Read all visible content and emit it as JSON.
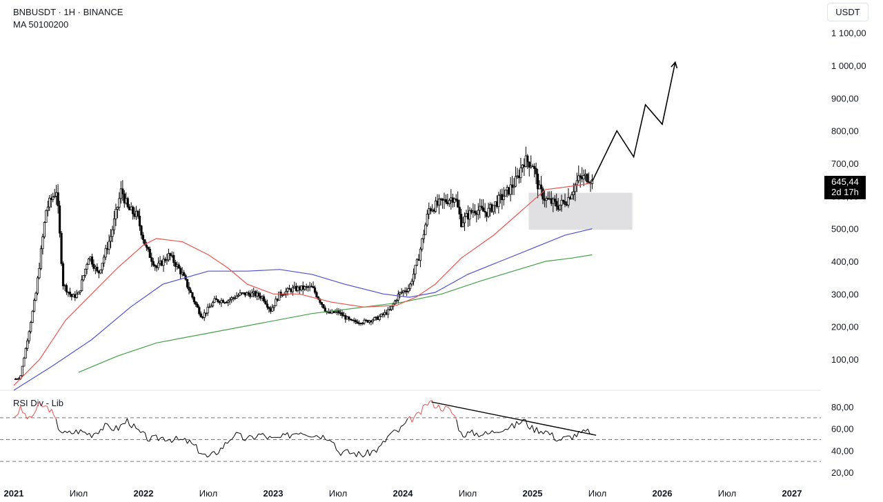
{
  "header": {
    "symbol_line": "BNBUSDT · 1H · BINANCE",
    "indicator_line": "MA 50100200"
  },
  "currency_label": "USDT",
  "price_tag": {
    "price": "645,44",
    "countdown": "2d 17h"
  },
  "rsi_panel": {
    "title": "RSI Div - Lib"
  },
  "colors": {
    "candle": "#000000",
    "ma50": "#e8534f",
    "ma100": "#4f4fd9",
    "ma200": "#43a047",
    "rsi_line": "#000000",
    "rsi_overbought": "#e8534f",
    "zone_fill": "#e0e0e2"
  },
  "chart_data": [
    {
      "type": "candlestick",
      "title": "BNBUSDT · 1H · BINANCE",
      "ylabel": "USDT",
      "ylim": [
        0,
        1150
      ],
      "y_ticks": [
        "100,00",
        "200,00",
        "300,00",
        "400,00",
        "500,00",
        "600,00",
        "700,00",
        "800,00",
        "900,00",
        "1 000,00",
        "1 100,00"
      ],
      "y_tick_values": [
        100,
        200,
        300,
        400,
        500,
        600,
        700,
        800,
        900,
        1000,
        1100
      ],
      "x_ticks": [
        {
          "label": "2021",
          "t": 2021.0,
          "bold": true
        },
        {
          "label": "Июл",
          "t": 2021.5,
          "bold": false
        },
        {
          "label": "2022",
          "t": 2022.0,
          "bold": true
        },
        {
          "label": "Июл",
          "t": 2022.5,
          "bold": false
        },
        {
          "label": "2023",
          "t": 2023.0,
          "bold": true
        },
        {
          "label": "Июл",
          "t": 2023.5,
          "bold": false
        },
        {
          "label": "2024",
          "t": 2024.0,
          "bold": true
        },
        {
          "label": "Июл",
          "t": 2024.5,
          "bold": false
        },
        {
          "label": "2025",
          "t": 2025.0,
          "bold": true
        },
        {
          "label": "Июл",
          "t": 2025.5,
          "bold": false
        },
        {
          "label": "2026",
          "t": 2026.0,
          "bold": true
        },
        {
          "label": "Июл",
          "t": 2026.5,
          "bold": false
        },
        {
          "label": "2027",
          "t": 2027.0,
          "bold": true
        }
      ],
      "price_path": [
        [
          2021.0,
          38
        ],
        [
          2021.05,
          45
        ],
        [
          2021.1,
          150
        ],
        [
          2021.17,
          300
        ],
        [
          2021.25,
          560
        ],
        [
          2021.33,
          620
        ],
        [
          2021.38,
          330
        ],
        [
          2021.45,
          290
        ],
        [
          2021.5,
          300
        ],
        [
          2021.58,
          420
        ],
        [
          2021.65,
          360
        ],
        [
          2021.75,
          480
        ],
        [
          2021.83,
          620
        ],
        [
          2021.88,
          560
        ],
        [
          2021.95,
          540
        ],
        [
          2022.02,
          440
        ],
        [
          2022.1,
          380
        ],
        [
          2022.2,
          420
        ],
        [
          2022.3,
          360
        ],
        [
          2022.4,
          270
        ],
        [
          2022.45,
          230
        ],
        [
          2022.55,
          280
        ],
        [
          2022.65,
          280
        ],
        [
          2022.75,
          300
        ],
        [
          2022.85,
          300
        ],
        [
          2022.92,
          290
        ],
        [
          2022.98,
          250
        ],
        [
          2023.05,
          300
        ],
        [
          2023.15,
          315
        ],
        [
          2023.3,
          320
        ],
        [
          2023.42,
          240
        ],
        [
          2023.5,
          245
        ],
        [
          2023.6,
          215
        ],
        [
          2023.7,
          215
        ],
        [
          2023.8,
          225
        ],
        [
          2023.9,
          250
        ],
        [
          2023.97,
          300
        ],
        [
          2024.05,
          320
        ],
        [
          2024.12,
          410
        ],
        [
          2024.2,
          560
        ],
        [
          2024.3,
          580
        ],
        [
          2024.4,
          600
        ],
        [
          2024.45,
          520
        ],
        [
          2024.55,
          560
        ],
        [
          2024.65,
          550
        ],
        [
          2024.72,
          580
        ],
        [
          2024.8,
          610
        ],
        [
          2024.88,
          650
        ],
        [
          2024.93,
          710
        ],
        [
          2025.0,
          700
        ],
        [
          2025.05,
          620
        ],
        [
          2025.1,
          590
        ],
        [
          2025.15,
          580
        ],
        [
          2025.2,
          570
        ],
        [
          2025.27,
          590
        ],
        [
          2025.35,
          650
        ],
        [
          2025.43,
          660
        ],
        [
          2025.46,
          645
        ]
      ],
      "ma50": [
        [
          2021.0,
          20
        ],
        [
          2021.2,
          100
        ],
        [
          2021.4,
          220
        ],
        [
          2021.6,
          300
        ],
        [
          2021.8,
          380
        ],
        [
          2022.0,
          450
        ],
        [
          2022.1,
          470
        ],
        [
          2022.3,
          460
        ],
        [
          2022.5,
          420
        ],
        [
          2022.65,
          380
        ],
        [
          2022.8,
          330
        ],
        [
          2023.0,
          300
        ],
        [
          2023.2,
          300
        ],
        [
          2023.45,
          275
        ],
        [
          2023.7,
          260
        ],
        [
          2023.95,
          265
        ],
        [
          2024.1,
          290
        ],
        [
          2024.25,
          330
        ],
        [
          2024.45,
          410
        ],
        [
          2024.7,
          480
        ],
        [
          2024.9,
          550
        ],
        [
          2025.1,
          620
        ],
        [
          2025.3,
          630
        ],
        [
          2025.46,
          640
        ]
      ],
      "ma100": [
        [
          2021.0,
          5
        ],
        [
          2021.3,
          80
        ],
        [
          2021.6,
          160
        ],
        [
          2021.9,
          260
        ],
        [
          2022.15,
          330
        ],
        [
          2022.5,
          370
        ],
        [
          2022.8,
          370
        ],
        [
          2023.05,
          375
        ],
        [
          2023.3,
          360
        ],
        [
          2023.55,
          330
        ],
        [
          2023.85,
          300
        ],
        [
          2024.05,
          290
        ],
        [
          2024.25,
          305
        ],
        [
          2024.5,
          360
        ],
        [
          2024.75,
          400
        ],
        [
          2025.0,
          440
        ],
        [
          2025.25,
          480
        ],
        [
          2025.46,
          500
        ]
      ],
      "ma200": [
        [
          2021.5,
          60
        ],
        [
          2021.8,
          110
        ],
        [
          2022.1,
          150
        ],
        [
          2022.5,
          180
        ],
        [
          2022.9,
          210
        ],
        [
          2023.3,
          240
        ],
        [
          2023.7,
          260
        ],
        [
          2024.0,
          275
        ],
        [
          2024.3,
          300
        ],
        [
          2024.6,
          340
        ],
        [
          2024.85,
          370
        ],
        [
          2025.1,
          400
        ],
        [
          2025.3,
          410
        ],
        [
          2025.46,
          420
        ]
      ],
      "projection": [
        [
          2025.46,
          645
        ],
        [
          2025.65,
          800
        ],
        [
          2025.78,
          720
        ],
        [
          2025.87,
          880
        ],
        [
          2026.0,
          820
        ],
        [
          2026.1,
          1010
        ]
      ],
      "support_zone": {
        "t0": 2024.97,
        "t1": 2025.77,
        "low": 497,
        "high": 610
      }
    },
    {
      "type": "line",
      "title": "RSI Div - Lib",
      "ylim": [
        10,
        92
      ],
      "y_ticks": [
        "20,00",
        "40,00",
        "60,00",
        "80,00"
      ],
      "y_tick_values": [
        20,
        40,
        60,
        80
      ],
      "levels": [
        30,
        50,
        70
      ],
      "rsi": [
        [
          2021.0,
          70
        ],
        [
          2021.05,
          78
        ],
        [
          2021.12,
          68
        ],
        [
          2021.2,
          82
        ],
        [
          2021.28,
          78
        ],
        [
          2021.35,
          60
        ],
        [
          2021.4,
          55
        ],
        [
          2021.5,
          58
        ],
        [
          2021.6,
          55
        ],
        [
          2021.7,
          62
        ],
        [
          2021.8,
          60
        ],
        [
          2021.88,
          68
        ],
        [
          2021.95,
          58
        ],
        [
          2022.05,
          50
        ],
        [
          2022.15,
          52
        ],
        [
          2022.25,
          50
        ],
        [
          2022.35,
          48
        ],
        [
          2022.45,
          38
        ],
        [
          2022.5,
          33
        ],
        [
          2022.6,
          42
        ],
        [
          2022.7,
          55
        ],
        [
          2022.8,
          50
        ],
        [
          2022.9,
          55
        ],
        [
          2023.0,
          50
        ],
        [
          2023.1,
          53
        ],
        [
          2023.2,
          58
        ],
        [
          2023.3,
          55
        ],
        [
          2023.45,
          52
        ],
        [
          2023.5,
          39
        ],
        [
          2023.6,
          38
        ],
        [
          2023.7,
          36
        ],
        [
          2023.82,
          42
        ],
        [
          2023.9,
          55
        ],
        [
          2023.97,
          58
        ],
        [
          2024.05,
          68
        ],
        [
          2024.12,
          72
        ],
        [
          2024.2,
          85
        ],
        [
          2024.28,
          80
        ],
        [
          2024.35,
          78
        ],
        [
          2024.4,
          72
        ],
        [
          2024.45,
          55
        ],
        [
          2024.55,
          56
        ],
        [
          2024.65,
          55
        ],
        [
          2024.75,
          60
        ],
        [
          2024.85,
          62
        ],
        [
          2024.93,
          68
        ],
        [
          2025.0,
          60
        ],
        [
          2025.1,
          58
        ],
        [
          2025.2,
          50
        ],
        [
          2025.28,
          52
        ],
        [
          2025.35,
          55
        ],
        [
          2025.45,
          58
        ],
        [
          2025.46,
          55
        ]
      ],
      "divergence_line": [
        [
          2024.22,
          84.5
        ],
        [
          2025.49,
          54
        ]
      ]
    }
  ]
}
